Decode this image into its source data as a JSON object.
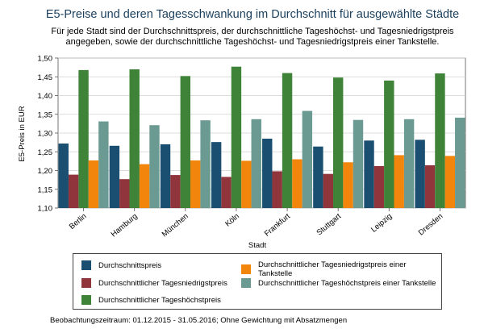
{
  "chart_data": {
    "type": "bar",
    "title": "E5-Preise und deren Tagesschwankung im Durchschnitt für ausgewählte Städte",
    "subtitle": [
      "Für jede Stadt sind der Durchschnittspreis, der durchschnittliche Tageshöchst- und Tagesniedrigstpreis",
      "angegeben, sowie der durchschnittliche Tageshöchst- und Tagesniedrigstpreis einer Tankstelle."
    ],
    "xlabel": "Stadt",
    "ylabel": "E5-Preis in EUR",
    "ylim": [
      1.1,
      1.5
    ],
    "yticks": [
      "1,10",
      "1,15",
      "1,20",
      "1,25",
      "1,30",
      "1,35",
      "1,40",
      "1,45",
      "1,50"
    ],
    "grid": true,
    "categories": [
      "Berlin",
      "Hamburg",
      "München",
      "Köln",
      "Frankfurt",
      "Stuttgart",
      "Leipzig",
      "Dresden"
    ],
    "series": [
      {
        "name": "Durchschnittspreis",
        "color": "#1a4f72",
        "values": [
          1.272,
          1.266,
          1.27,
          1.276,
          1.285,
          1.264,
          1.28,
          1.282
        ]
      },
      {
        "name": "Durchschnittlicher Tagesniedrigstpreis",
        "color": "#90353b",
        "values": [
          1.189,
          1.177,
          1.188,
          1.183,
          1.198,
          1.191,
          1.212,
          1.214
        ]
      },
      {
        "name": "Durchschnittlicher Tageshöchstpreis",
        "color": "#3e8337",
        "values": [
          1.468,
          1.47,
          1.452,
          1.477,
          1.46,
          1.448,
          1.44,
          1.459
        ]
      },
      {
        "name": "Durchschnittlicher Tagesniedrigstpreis einer Tankstelle",
        "color": "#f2860c",
        "values": [
          1.227,
          1.217,
          1.227,
          1.226,
          1.23,
          1.222,
          1.241,
          1.239
        ]
      },
      {
        "name": "Durchschnittlicher Tageshöchstpreis einer Tankstelle",
        "color": "#6a9a91",
        "values": [
          1.331,
          1.321,
          1.334,
          1.337,
          1.359,
          1.335,
          1.337,
          1.341
        ]
      }
    ],
    "legend": {
      "placement": "bottom",
      "order": [
        0,
        3,
        1,
        4,
        2
      ]
    }
  },
  "footnote": "Beobachtungszeitraum: 01.12.2015 - 31.05.2016; Ohne Gewichtung mit Absatzmengen"
}
